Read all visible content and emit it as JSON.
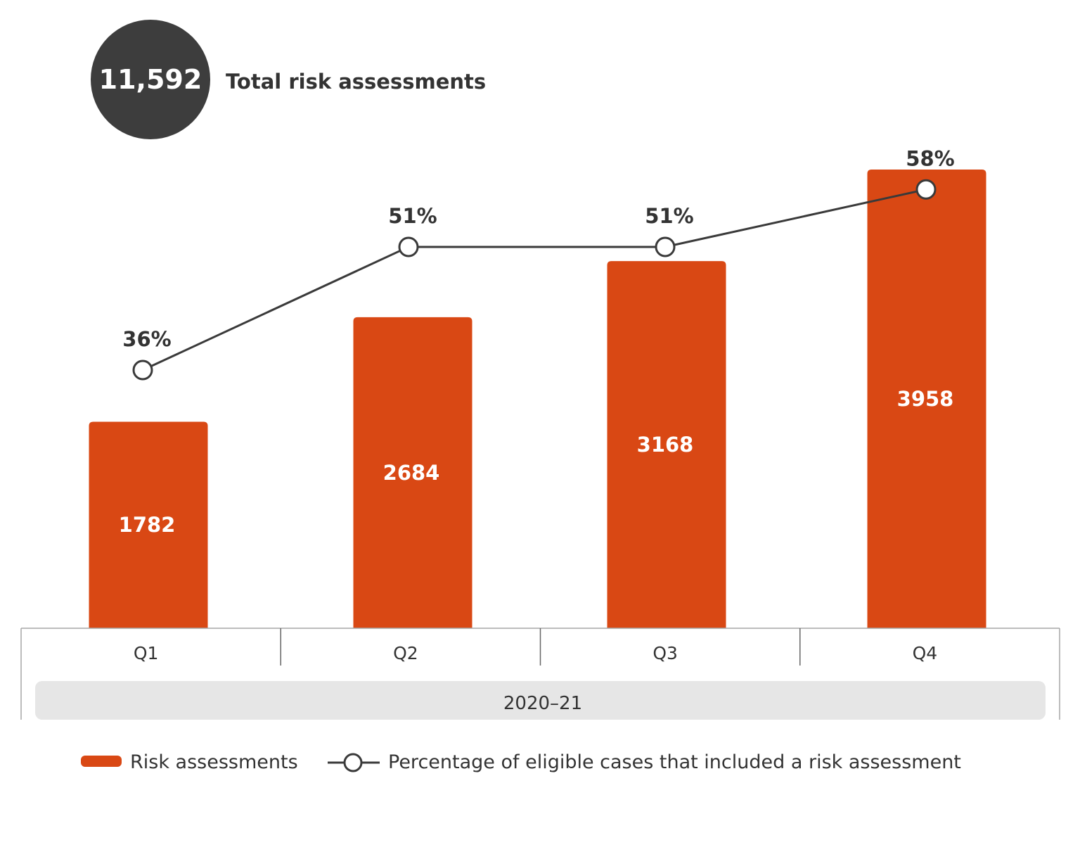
{
  "summary": {
    "total_value": "11,592",
    "total_label": "Total risk assessments"
  },
  "chart_data": {
    "type": "bar",
    "title": "Total risk assessments",
    "categories": [
      "Q1",
      "Q2",
      "Q3",
      "Q4"
    ],
    "group_label": "2020–21",
    "series": [
      {
        "name": "Risk assessments",
        "kind": "bar",
        "values": [
          1782,
          2684,
          3168,
          3958
        ],
        "labels": [
          "1782",
          "2684",
          "3168",
          "3958"
        ]
      },
      {
        "name": "Percentage of eligible cases that included a risk assessment",
        "kind": "line",
        "values": [
          36,
          51,
          51,
          58
        ],
        "labels": [
          "36%",
          "51%",
          "51%",
          "58%"
        ]
      }
    ],
    "xlabel": "",
    "ylabel": "",
    "legend": "bottom-center",
    "grid": false
  },
  "legend": {
    "bars_label": "Risk assessments",
    "line_label": "Percentage of eligible cases that included a risk assessment"
  },
  "colors": {
    "bar": "#d94814",
    "line": "#3a3a3a",
    "marker_fill": "#ffffff",
    "badge": "#3d3d3d",
    "badge_text": "#ffffff",
    "group_band": "#e6e6e6",
    "axis": "#a6a6a6",
    "text": "#333333"
  }
}
